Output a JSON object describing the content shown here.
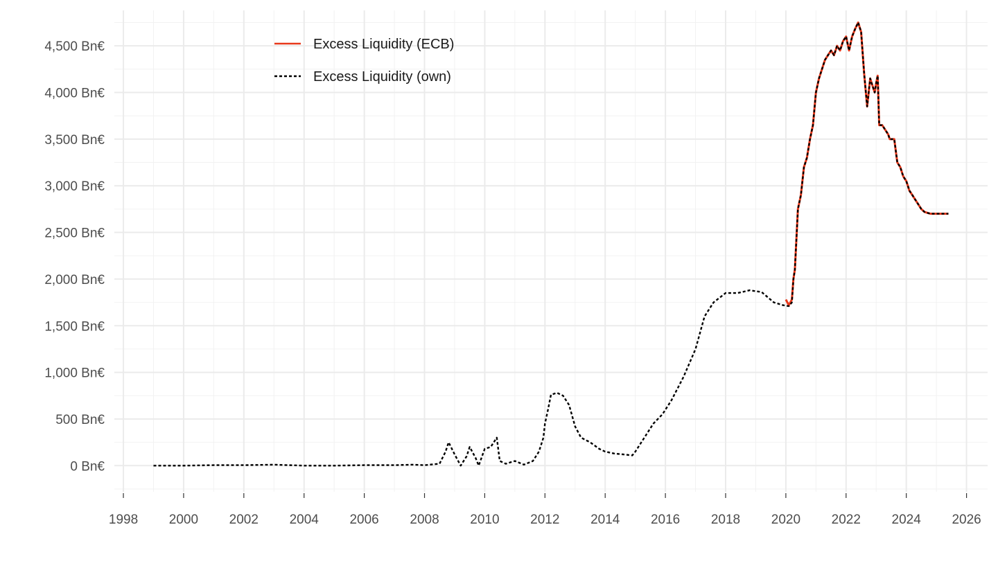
{
  "chart_data": {
    "type": "line",
    "x_unit": "year",
    "xlim": [
      1997.7,
      2026.7
    ],
    "ylim": [
      -280,
      4880
    ],
    "x_ticks": [
      1998,
      2000,
      2002,
      2004,
      2006,
      2008,
      2010,
      2012,
      2014,
      2016,
      2018,
      2020,
      2022,
      2024,
      2026
    ],
    "x_tick_labels": [
      "1998",
      "2000",
      "2002",
      "2004",
      "2006",
      "2008",
      "2010",
      "2012",
      "2014",
      "2016",
      "2018",
      "2020",
      "2022",
      "2024",
      "2026"
    ],
    "y_ticks": [
      0,
      500,
      1000,
      1500,
      2000,
      2500,
      3000,
      3500,
      4000,
      4500
    ],
    "y_tick_labels": [
      "0 Bn€",
      "500 Bn€",
      "1,000 Bn€",
      "1,500 Bn€",
      "2,000 Bn€",
      "2,500 Bn€",
      "3,000 Bn€",
      "3,500 Bn€",
      "4,000 Bn€",
      "4,500 Bn€"
    ],
    "grid": true,
    "legend_position": "top-left",
    "series": [
      {
        "name": "Excess Liquidity (ECB)",
        "color": "#e8381a",
        "style": "solid",
        "x": [
          2020.0,
          2020.1,
          2020.2,
          2020.25,
          2020.3,
          2020.4,
          2020.5,
          2020.6,
          2020.7,
          2020.8,
          2020.9,
          2021.0,
          2021.1,
          2021.2,
          2021.3,
          2021.4,
          2021.5,
          2021.6,
          2021.7,
          2021.8,
          2021.9,
          2022.0,
          2022.1,
          2022.2,
          2022.3,
          2022.4,
          2022.5,
          2022.6,
          2022.7,
          2022.8,
          2022.85,
          2022.9,
          2022.95,
          2023.0,
          2023.05,
          2023.1,
          2023.2,
          2023.3,
          2023.4,
          2023.45,
          2023.5,
          2023.6,
          2023.7,
          2023.8,
          2023.9,
          2024.0,
          2024.05,
          2024.1,
          2024.2,
          2024.3,
          2024.4,
          2024.5,
          2024.6,
          2024.7,
          2024.8,
          2024.9,
          2025.0,
          2025.1,
          2025.2,
          2025.3,
          2025.4
        ],
        "y": [
          1780,
          1720,
          1780,
          2000,
          2100,
          2750,
          2900,
          3200,
          3300,
          3500,
          3650,
          4000,
          4150,
          4250,
          4350,
          4400,
          4450,
          4400,
          4500,
          4450,
          4550,
          4600,
          4450,
          4600,
          4680,
          4750,
          4650,
          4200,
          3850,
          4150,
          4100,
          4050,
          4000,
          4100,
          4180,
          3650,
          3650,
          3600,
          3550,
          3500,
          3500,
          3500,
          3250,
          3200,
          3100,
          3050,
          3000,
          2950,
          2900,
          2850,
          2800,
          2750,
          2720,
          2710,
          2700,
          2700,
          2700,
          2700,
          2700,
          2700,
          2700
        ]
      },
      {
        "name": "Excess Liquidity (own)",
        "color": "#000000",
        "style": "dashed",
        "x": [
          1999.0,
          2000.0,
          2001.0,
          2002.0,
          2003.0,
          2004.0,
          2005.0,
          2006.0,
          2007.0,
          2007.6,
          2008.0,
          2008.5,
          2008.7,
          2008.8,
          2009.0,
          2009.2,
          2009.4,
          2009.5,
          2009.7,
          2009.8,
          2010.0,
          2010.2,
          2010.4,
          2010.5,
          2010.7,
          2011.0,
          2011.3,
          2011.6,
          2011.8,
          2011.95,
          2012.0,
          2012.1,
          2012.2,
          2012.4,
          2012.6,
          2012.8,
          2013.0,
          2013.2,
          2013.5,
          2013.8,
          2014.0,
          2014.3,
          2014.6,
          2014.9,
          2015.0,
          2015.3,
          2015.6,
          2015.9,
          2016.2,
          2016.6,
          2017.0,
          2017.3,
          2017.6,
          2018.0,
          2018.4,
          2018.8,
          2019.2,
          2019.6,
          2019.9,
          2020.1,
          2020.2,
          2020.25,
          2020.3,
          2020.4,
          2020.5,
          2020.6,
          2020.7,
          2020.8,
          2020.9,
          2021.0,
          2021.1,
          2021.2,
          2021.3,
          2021.4,
          2021.5,
          2021.6,
          2021.7,
          2021.8,
          2021.9,
          2022.0,
          2022.1,
          2022.2,
          2022.3,
          2022.4,
          2022.5,
          2022.6,
          2022.7,
          2022.8,
          2022.85,
          2022.9,
          2022.95,
          2023.0,
          2023.05,
          2023.1,
          2023.2,
          2023.3,
          2023.4,
          2023.45,
          2023.5,
          2023.6,
          2023.7,
          2023.8,
          2023.9,
          2024.0,
          2024.05,
          2024.1,
          2024.2,
          2024.3,
          2024.4,
          2024.5,
          2024.6,
          2024.7,
          2024.8,
          2024.9,
          2025.0,
          2025.1,
          2025.2,
          2025.3,
          2025.4
        ],
        "y": [
          0,
          0,
          5,
          5,
          10,
          0,
          0,
          5,
          5,
          10,
          5,
          20,
          150,
          250,
          120,
          0,
          100,
          200,
          80,
          0,
          180,
          200,
          300,
          50,
          20,
          50,
          10,
          50,
          150,
          300,
          450,
          600,
          760,
          780,
          750,
          650,
          420,
          300,
          250,
          180,
          150,
          130,
          120,
          110,
          150,
          300,
          450,
          550,
          700,
          950,
          1250,
          1600,
          1750,
          1850,
          1850,
          1880,
          1860,
          1750,
          1720,
          1710,
          1750,
          2000,
          2100,
          2750,
          2900,
          3200,
          3300,
          3500,
          3650,
          4000,
          4150,
          4250,
          4350,
          4400,
          4450,
          4400,
          4500,
          4450,
          4550,
          4600,
          4450,
          4600,
          4680,
          4750,
          4650,
          4200,
          3850,
          4150,
          4100,
          4050,
          4000,
          4100,
          4180,
          3650,
          3650,
          3600,
          3550,
          3500,
          3500,
          3500,
          3250,
          3200,
          3100,
          3050,
          3000,
          2950,
          2900,
          2850,
          2800,
          2750,
          2720,
          2710,
          2700,
          2700,
          2700,
          2700,
          2700,
          2700,
          2700
        ]
      }
    ]
  }
}
